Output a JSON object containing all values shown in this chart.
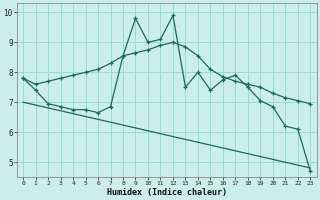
{
  "xlabel": "Humidex (Indice chaleur)",
  "bg_color": "#cceee8",
  "grid_color": "#99ddcc",
  "line_color": "#1a6b5a",
  "xlim": [
    -0.5,
    23.5
  ],
  "ylim": [
    4.5,
    10.3
  ],
  "yticks": [
    5,
    6,
    7,
    8,
    9,
    10
  ],
  "xticks": [
    0,
    1,
    2,
    3,
    4,
    5,
    6,
    7,
    8,
    9,
    10,
    11,
    12,
    13,
    14,
    15,
    16,
    17,
    18,
    19,
    20,
    21,
    22,
    23
  ],
  "line1_x": [
    0,
    1,
    2,
    3,
    4,
    5,
    6,
    7,
    8,
    9,
    10,
    11,
    12,
    13,
    14,
    15,
    16,
    17,
    18,
    19,
    20,
    21,
    22,
    23
  ],
  "line1_y": [
    7.8,
    7.4,
    6.95,
    6.85,
    6.75,
    6.75,
    6.65,
    6.85,
    8.55,
    9.8,
    9.0,
    9.1,
    9.9,
    7.5,
    8.0,
    7.4,
    7.75,
    7.9,
    7.5,
    7.05,
    6.85,
    6.2,
    6.1,
    4.7
  ],
  "line2_x": [
    0,
    1,
    2,
    3,
    4,
    5,
    6,
    7,
    8,
    9,
    10,
    11,
    12,
    13,
    14,
    15,
    16,
    17,
    18,
    19,
    20,
    21,
    22,
    23
  ],
  "line2_y": [
    7.8,
    7.6,
    7.7,
    7.8,
    7.9,
    8.0,
    8.1,
    8.3,
    8.55,
    8.65,
    8.75,
    8.9,
    9.0,
    8.85,
    8.55,
    8.1,
    7.85,
    7.7,
    7.6,
    7.5,
    7.3,
    7.15,
    7.05,
    6.95
  ],
  "line3_x": [
    0,
    23
  ],
  "line3_y": [
    7.0,
    4.8
  ]
}
